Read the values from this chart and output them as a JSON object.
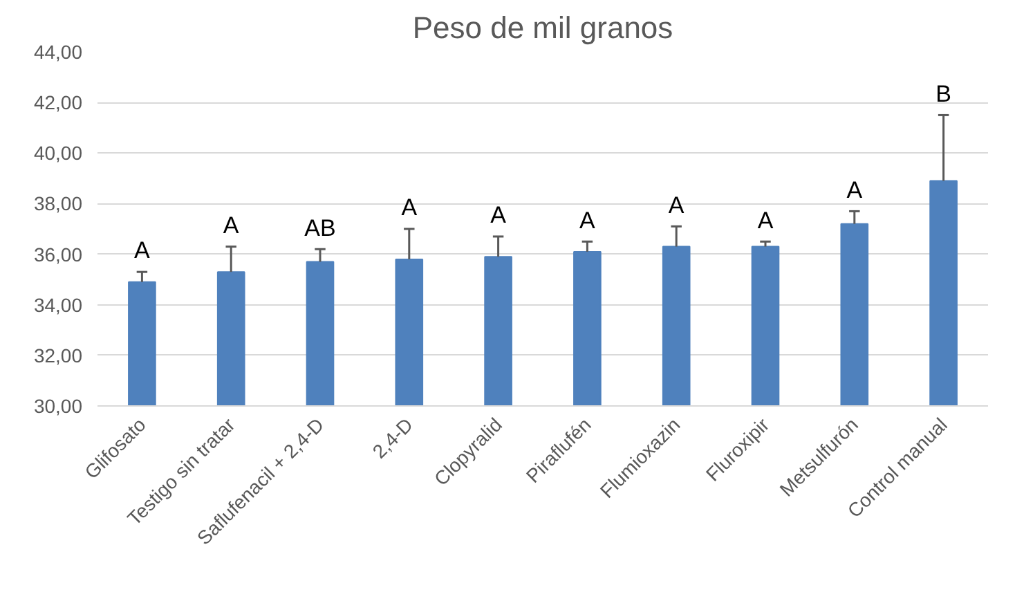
{
  "chart_data": {
    "type": "bar",
    "title": "Peso de mil granos",
    "categories": [
      "Glifosato",
      "Testigo sin tratar",
      "Saflufenacil + 2,4-D",
      "2,4-D",
      "Clopyralid",
      "Piraflufén",
      "Flumioxazin",
      "Fluroxipir",
      "Metsulfurón",
      "Control manual"
    ],
    "values": [
      34.9,
      35.3,
      35.7,
      35.8,
      35.9,
      36.1,
      36.3,
      36.3,
      37.2,
      38.9
    ],
    "errors": [
      [
        34.9,
        35.3
      ],
      [
        35.3,
        36.3
      ],
      [
        35.7,
        36.2
      ],
      [
        35.8,
        37.0
      ],
      [
        35.9,
        36.7
      ],
      [
        36.1,
        36.5
      ],
      [
        36.3,
        37.1
      ],
      [
        36.3,
        36.5
      ],
      [
        37.2,
        37.7
      ],
      [
        38.9,
        41.5
      ]
    ],
    "color": "#4f81bd",
    "ylim": [
      30,
      44
    ],
    "yticks": [
      {
        "value": 30,
        "label": "30,00"
      },
      {
        "value": 32,
        "label": "32,00"
      },
      {
        "value": 34,
        "label": "34,00"
      },
      {
        "value": 36,
        "label": "36,00"
      },
      {
        "value": 38,
        "label": "38,00"
      },
      {
        "value": 40,
        "label": "40,00"
      },
      {
        "value": 42,
        "label": "42,00"
      },
      {
        "value": 44,
        "label": "44,00"
      }
    ],
    "grid": "y",
    "annotations": [
      "A",
      "A",
      "AB",
      "A",
      "A",
      "A",
      "A",
      "A",
      "A",
      "B"
    ]
  }
}
